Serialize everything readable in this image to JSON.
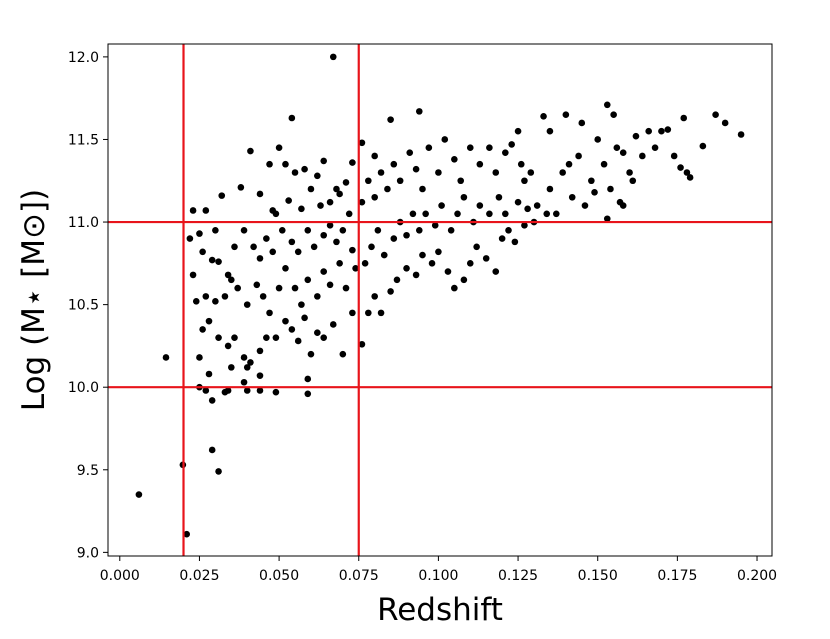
{
  "chart_data": {
    "type": "scatter",
    "xlabel": "Redshift",
    "ylabel": "Log (M⋆ [M⊙])",
    "xlim": [
      -0.0037,
      0.2047
    ],
    "ylim": [
      8.978,
      12.078
    ],
    "xticks": [
      {
        "value": 0,
        "label": "0.000"
      },
      0.025,
      {
        "value": 0.05,
        "label": "0.050"
      },
      0.075,
      {
        "value": 0.1,
        "label": "0.100"
      },
      0.125,
      {
        "value": 0.15,
        "label": "0.150"
      },
      0.175,
      {
        "value": 0.2,
        "label": "0.200"
      }
    ],
    "yticks": [
      {
        "value": 9,
        "label": "9.0"
      },
      9.5,
      {
        "value": 10,
        "label": "10.0"
      },
      10.5,
      {
        "value": 11,
        "label": "11.0"
      },
      11.5,
      {
        "value": 12,
        "label": "12.0"
      }
    ],
    "reference_lines": {
      "x": [
        0.02,
        0.075
      ],
      "y": [
        10,
        11
      ],
      "color": "#e8141b"
    },
    "series": [
      {
        "color": "#000000",
        "x": [
          0.006,
          0.0198,
          0.021,
          0.0145,
          0.031,
          0.029,
          0.067,
          0.054,
          0.153,
          0.195,
          0.187,
          0.19,
          0.177,
          0.059,
          0.059,
          0.04,
          0.033,
          0.029,
          0.025,
          0.044,
          0.049,
          0.039,
          0.034,
          0.027,
          0.023,
          0.027,
          0.025,
          0.022,
          0.03,
          0.032,
          0.038,
          0.041,
          0.047,
          0.05,
          0.052,
          0.055,
          0.058,
          0.062,
          0.064,
          0.068,
          0.071,
          0.073,
          0.044,
          0.048,
          0.049,
          0.053,
          0.057,
          0.06,
          0.063,
          0.066,
          0.069,
          0.072,
          0.026,
          0.029,
          0.031,
          0.034,
          0.036,
          0.039,
          0.042,
          0.044,
          0.046,
          0.048,
          0.051,
          0.054,
          0.056,
          0.059,
          0.061,
          0.064,
          0.066,
          0.068,
          0.07,
          0.073,
          0.023,
          0.024,
          0.027,
          0.03,
          0.033,
          0.035,
          0.037,
          0.04,
          0.043,
          0.045,
          0.047,
          0.05,
          0.052,
          0.055,
          0.057,
          0.059,
          0.062,
          0.064,
          0.066,
          0.069,
          0.071,
          0.074,
          0.026,
          0.028,
          0.031,
          0.034,
          0.036,
          0.039,
          0.041,
          0.044,
          0.046,
          0.049,
          0.052,
          0.054,
          0.056,
          0.058,
          0.06,
          0.062,
          0.064,
          0.067,
          0.07,
          0.073,
          0.044,
          0.04,
          0.035,
          0.028,
          0.025,
          0.076,
          0.078,
          0.08,
          0.082,
          0.085,
          0.087,
          0.09,
          0.093,
          0.095,
          0.098,
          0.1,
          0.103,
          0.105,
          0.108,
          0.11,
          0.112,
          0.115,
          0.118,
          0.12,
          0.122,
          0.124,
          0.127,
          0.077,
          0.079,
          0.081,
          0.083,
          0.086,
          0.088,
          0.09,
          0.092,
          0.094,
          0.096,
          0.099,
          0.101,
          0.104,
          0.106,
          0.108,
          0.111,
          0.113,
          0.116,
          0.119,
          0.121,
          0.125,
          0.128,
          0.076,
          0.078,
          0.08,
          0.082,
          0.084,
          0.086,
          0.088,
          0.091,
          0.093,
          0.095,
          0.097,
          0.1,
          0.102,
          0.105,
          0.107,
          0.11,
          0.113,
          0.116,
          0.118,
          0.121,
          0.123,
          0.126,
          0.129,
          0.085,
          0.094,
          0.076,
          0.08,
          0.131,
          0.133,
          0.135,
          0.137,
          0.139,
          0.14,
          0.142,
          0.144,
          0.146,
          0.148,
          0.15,
          0.152,
          0.154,
          0.156,
          0.158,
          0.16,
          0.162,
          0.164,
          0.166,
          0.168,
          0.17,
          0.172,
          0.174,
          0.176,
          0.178,
          0.179,
          0.183,
          0.135,
          0.145,
          0.155,
          0.13,
          0.134,
          0.125,
          0.127,
          0.141,
          0.149,
          0.158,
          0.161,
          0.157,
          0.153
        ],
        "y": [
          9.35,
          9.53,
          9.11,
          10.18,
          9.49,
          9.62,
          12.0,
          11.63,
          11.71,
          11.53,
          11.65,
          11.6,
          11.63,
          9.96,
          10.05,
          9.98,
          9.97,
          9.92,
          10.0,
          9.98,
          9.97,
          10.03,
          9.98,
          9.98,
          11.07,
          11.07,
          10.93,
          10.9,
          10.95,
          11.16,
          11.21,
          11.43,
          11.35,
          11.45,
          11.35,
          11.3,
          11.32,
          11.28,
          11.37,
          11.2,
          11.24,
          11.36,
          11.17,
          11.07,
          11.05,
          11.13,
          11.08,
          11.2,
          11.1,
          11.12,
          11.17,
          11.05,
          10.82,
          10.77,
          10.76,
          10.68,
          10.85,
          10.95,
          10.85,
          10.78,
          10.9,
          10.82,
          10.95,
          10.88,
          10.82,
          10.95,
          10.85,
          10.92,
          10.98,
          10.88,
          10.95,
          10.83,
          10.68,
          10.52,
          10.55,
          10.52,
          10.55,
          10.65,
          10.6,
          10.5,
          10.62,
          10.55,
          10.45,
          10.6,
          10.72,
          10.6,
          10.5,
          10.65,
          10.55,
          10.7,
          10.62,
          10.75,
          10.6,
          10.72,
          10.35,
          10.4,
          10.3,
          10.25,
          10.3,
          10.18,
          10.15,
          10.22,
          10.3,
          10.3,
          10.4,
          10.35,
          10.28,
          10.42,
          10.2,
          10.33,
          10.3,
          10.38,
          10.2,
          10.45,
          10.07,
          10.12,
          10.12,
          10.08,
          10.18,
          10.26,
          10.45,
          10.55,
          10.45,
          10.58,
          10.65,
          10.72,
          10.68,
          10.8,
          10.75,
          10.82,
          10.7,
          10.6,
          10.65,
          10.75,
          10.85,
          10.78,
          10.7,
          10.9,
          10.95,
          10.88,
          10.98,
          10.75,
          10.85,
          10.95,
          10.8,
          10.9,
          11.0,
          10.92,
          11.05,
          10.95,
          11.05,
          10.98,
          11.1,
          10.95,
          11.05,
          11.15,
          11.0,
          11.1,
          11.05,
          11.15,
          11.05,
          11.12,
          11.08,
          11.12,
          11.25,
          11.15,
          11.3,
          11.2,
          11.35,
          11.25,
          11.42,
          11.32,
          11.2,
          11.45,
          11.3,
          11.5,
          11.38,
          11.25,
          11.45,
          11.35,
          11.45,
          11.3,
          11.42,
          11.47,
          11.35,
          11.3,
          11.62,
          11.67,
          11.48,
          11.4,
          11.1,
          11.64,
          11.2,
          11.05,
          11.3,
          11.65,
          11.15,
          11.4,
          11.1,
          11.25,
          11.5,
          11.35,
          11.2,
          11.45,
          11.1,
          11.3,
          11.52,
          11.4,
          11.55,
          11.45,
          11.55,
          11.56,
          11.4,
          11.33,
          11.3,
          11.27,
          11.46,
          11.55,
          11.6,
          11.65,
          11.0,
          11.05,
          11.55,
          11.25,
          11.35,
          11.18,
          11.42,
          11.25,
          11.12,
          11.02
        ]
      }
    ]
  }
}
